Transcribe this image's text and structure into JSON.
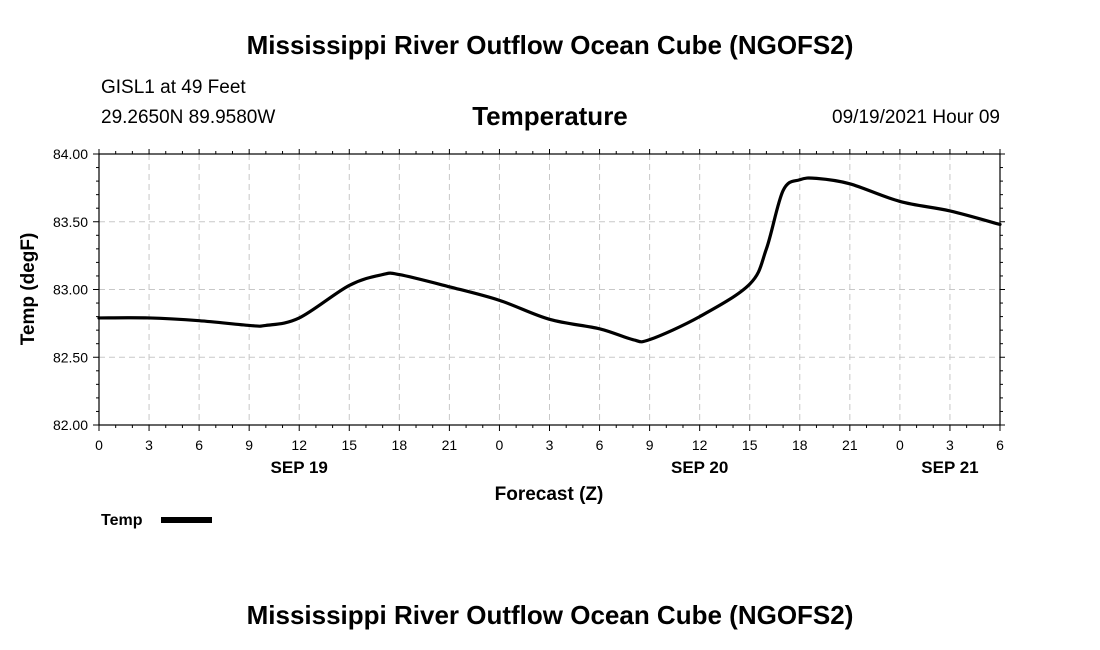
{
  "header": {
    "title": "Mississippi River Outflow Ocean Cube (NGOFS2)",
    "station": "GISL1 at 49 Feet",
    "coords": "29.2650N  89.9580W",
    "forecast_time": "09/19/2021 Hour 09"
  },
  "footer": {
    "title": "Mississippi River Outflow Ocean Cube (NGOFS2)"
  },
  "colors": {
    "line": "#000000",
    "grid": "#c8c8c8",
    "axis": "#000000"
  },
  "chart_data": {
    "type": "line",
    "title": "Temperature",
    "xlabel": "Forecast (Z)",
    "ylabel": "Temp (degF)",
    "xlim": [
      0,
      54
    ],
    "ylim": [
      82.0,
      84.0
    ],
    "grid": true,
    "legend_position": "bottom-left",
    "x_ticks": [
      0,
      3,
      6,
      9,
      12,
      15,
      18,
      21,
      24,
      27,
      30,
      33,
      36,
      39,
      42,
      45,
      48,
      51,
      54
    ],
    "x_tick_labels": [
      "0",
      "3",
      "6",
      "9",
      "12",
      "15",
      "18",
      "21",
      "0",
      "3",
      "6",
      "9",
      "12",
      "15",
      "18",
      "21",
      "0",
      "3",
      "6"
    ],
    "y_ticks": [
      82.0,
      82.5,
      83.0,
      83.5,
      84.0
    ],
    "y_tick_labels": [
      "82.00",
      "82.50",
      "83.00",
      "83.50",
      "84.00"
    ],
    "date_labels": [
      {
        "x": 12,
        "label": "SEP 19"
      },
      {
        "x": 36,
        "label": "SEP 20"
      },
      {
        "x": 51,
        "label": "SEP 21"
      }
    ],
    "series": [
      {
        "name": "Temp",
        "x": [
          0,
          3,
          6,
          9,
          10,
          12,
          15,
          17,
          18,
          21,
          24,
          27,
          30,
          32,
          33,
          36,
          39,
          40,
          41,
          42,
          43,
          45,
          48,
          51,
          54
        ],
        "y": [
          82.79,
          82.79,
          82.77,
          82.735,
          82.735,
          82.79,
          83.03,
          83.11,
          83.11,
          83.02,
          82.92,
          82.78,
          82.71,
          82.63,
          82.63,
          82.8,
          83.04,
          83.3,
          83.73,
          83.81,
          83.82,
          83.78,
          83.65,
          83.58,
          83.48
        ]
      }
    ]
  }
}
